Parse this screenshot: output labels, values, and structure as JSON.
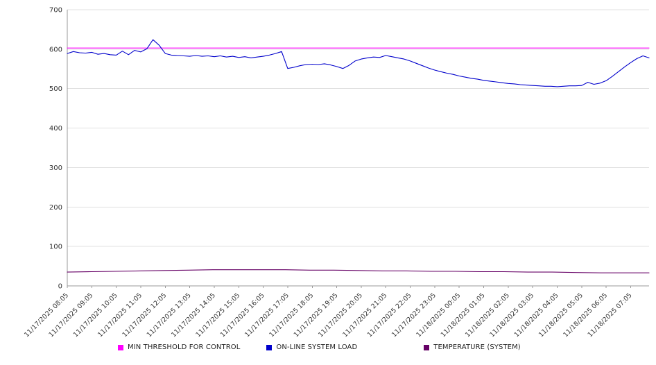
{
  "chart_data": {
    "type": "line",
    "title": "",
    "xlabel": "",
    "ylabel": "",
    "ylim": [
      0,
      700
    ],
    "yticks": [
      0,
      100,
      200,
      300,
      400,
      500,
      600,
      700
    ],
    "grid": "horizontal",
    "legend_position": "bottom",
    "x_span_minutes": 1425,
    "x_label_interval_minutes": 60,
    "x_labels": [
      "11/17/2025 08:05",
      "11/17/2025 09:05",
      "11/17/2025 10:05",
      "11/17/2025 11:05",
      "11/17/2025 12:05",
      "11/17/2025 13:05",
      "11/17/2025 14:05",
      "11/17/2025 15:05",
      "11/17/2025 16:05",
      "11/17/2025 17:05",
      "11/17/2025 18:05",
      "11/17/2025 19:05",
      "11/17/2025 20:05",
      "11/17/2025 21:05",
      "11/17/2025 22:05",
      "11/17/2025 23:05",
      "11/18/2025 00:05",
      "11/18/2025 01:05",
      "11/18/2025 02:05",
      "11/18/2025 03:05",
      "11/18/2025 04:05",
      "11/18/2025 05:05",
      "11/18/2025 06:05",
      "11/18/2025 07:05"
    ],
    "series": [
      {
        "name": "MIN THRESHOLD FOR CONTROL",
        "color": "#ff00ff",
        "values": [
          603,
          603
        ]
      },
      {
        "name": "ON-LINE SYSTEM LOAD",
        "color": "#0000cc",
        "values": [
          589,
          594,
          591,
          590,
          592,
          587,
          589,
          586,
          585,
          595,
          586,
          597,
          593,
          601,
          624,
          610,
          589,
          585,
          584,
          583,
          582,
          584,
          582,
          583,
          581,
          583,
          580,
          582,
          579,
          581,
          578,
          580,
          582,
          585,
          589,
          594,
          551,
          554,
          558,
          561,
          562,
          561,
          563,
          560,
          556,
          551,
          559,
          570,
          575,
          578,
          580,
          579,
          584,
          581,
          578,
          575,
          570,
          564,
          558,
          552,
          547,
          543,
          539,
          536,
          532,
          529,
          526,
          524,
          521,
          519,
          517,
          515,
          513,
          512,
          510,
          509,
          508,
          507,
          506,
          506,
          505,
          506,
          507,
          507,
          508,
          516,
          511,
          514,
          520,
          531,
          543,
          555,
          566,
          576,
          583,
          578
        ]
      },
      {
        "name": "TEMPERATURE (SYSTEM)",
        "color": "#660066",
        "values": [
          35,
          36,
          37,
          38,
          39,
          40,
          41,
          41,
          41,
          41,
          40,
          40,
          39,
          38,
          38,
          37,
          37,
          36,
          36,
          35,
          35,
          34,
          33,
          33,
          33
        ]
      }
    ]
  }
}
